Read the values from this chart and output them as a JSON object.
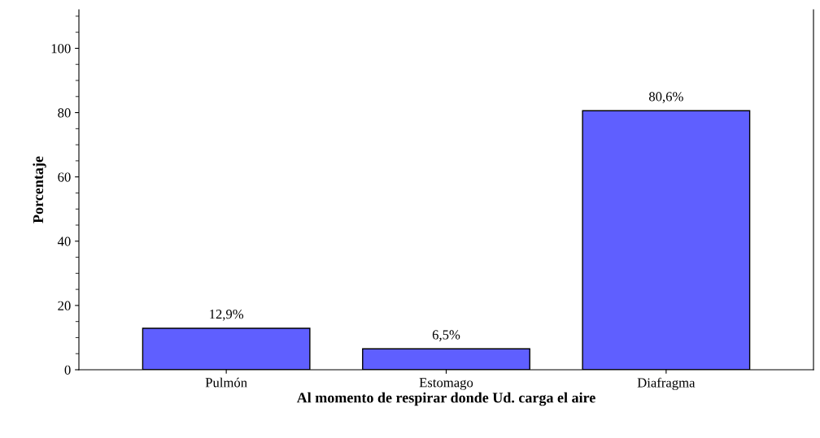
{
  "chart_data": {
    "type": "bar",
    "xlabel": "Al momento de respirar donde Ud. carga el aire",
    "ylabel": "Porcentaje",
    "categories": [
      "Pulmón",
      "Estomago",
      "Diafragma"
    ],
    "values": [
      12.9,
      6.5,
      80.6
    ],
    "value_labels": [
      "12,9%",
      "6,5%",
      "80,6%"
    ],
    "color": "#5f5fff",
    "ylim": [
      0,
      112
    ],
    "yticks": [
      0,
      20,
      40,
      60,
      80,
      100
    ],
    "grid": false,
    "legend": false
  }
}
